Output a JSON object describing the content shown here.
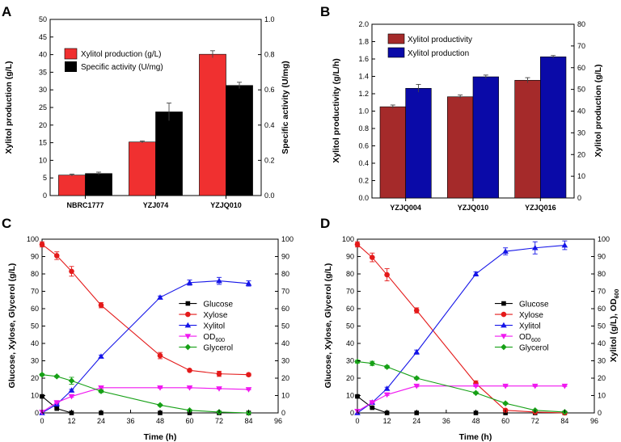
{
  "chart_data": [
    {
      "id": "A",
      "type": "bar",
      "panel_label": "A",
      "categories": [
        "NBRC1777",
        "YZJ074",
        "YZJQ010"
      ],
      "series": [
        {
          "name": "Xylitol production (g/L)",
          "axis": "left",
          "color": "#f03030",
          "values": [
            5.8,
            15.2,
            40.1
          ],
          "errors": [
            0.3,
            0.3,
            1.0
          ]
        },
        {
          "name": "Specific activity (U/mg)",
          "axis": "right",
          "color": "#000000",
          "values": [
            0.125,
            0.475,
            0.625
          ],
          "errors": [
            0.008,
            0.05,
            0.018
          ]
        }
      ],
      "ylabel": "Xylitol production (g/L)",
      "y2label": "Specific activity (U/mg)",
      "ylim": [
        0,
        50
      ],
      "y2lim": [
        0,
        1.0
      ],
      "yticks": [
        "0",
        "5",
        "10",
        "15",
        "20",
        "25",
        "30",
        "35",
        "40",
        "45",
        "50"
      ],
      "y2ticks": [
        "0.0",
        "0.2",
        "0.4",
        "0.6",
        "0.8",
        "1.0"
      ],
      "legend_position": "top-left"
    },
    {
      "id": "B",
      "type": "bar",
      "panel_label": "B",
      "categories": [
        "YZJQ004",
        "YZJQ010",
        "YZJQ016"
      ],
      "series": [
        {
          "name": "Xylitol productivity",
          "axis": "left",
          "color": "#a52a2a",
          "values": [
            1.05,
            1.165,
            1.355
          ],
          "errors": [
            0.02,
            0.02,
            0.03
          ]
        },
        {
          "name": "Xylitol production",
          "axis": "right",
          "color": "#0a0aa8",
          "values": [
            50.5,
            55.8,
            65.0
          ],
          "errors": [
            1.8,
            0.8,
            0.6
          ]
        }
      ],
      "ylabel": "Xylitol productivity (g/L/h)",
      "y2label": "Xylitol production (g/L)",
      "ylim": [
        0,
        2.0
      ],
      "y2lim": [
        0,
        80
      ],
      "yticks": [
        "0.0",
        "0.2",
        "0.4",
        "0.6",
        "0.8",
        "1.0",
        "1.2",
        "1.4",
        "1.6",
        "1.8",
        "2.0"
      ],
      "y2ticks": [
        "0",
        "10",
        "20",
        "30",
        "40",
        "50",
        "60",
        "70",
        "80"
      ],
      "legend_position": "top-left"
    },
    {
      "id": "C",
      "type": "line",
      "panel_label": "C",
      "xlabel": "Time (h)",
      "ylabel": "Glucose, Xylose, Glycerol (g/L)",
      "xlim": [
        0,
        96
      ],
      "ylim": [
        0,
        100
      ],
      "y2lim": [
        0,
        100
      ],
      "xticks": [
        "0",
        "12",
        "24",
        "36",
        "48",
        "60",
        "72",
        "84",
        "96"
      ],
      "yticks": [
        "0",
        "10",
        "20",
        "30",
        "40",
        "50",
        "60",
        "70",
        "80",
        "90",
        "100"
      ],
      "y2ticks": [
        "0",
        "10",
        "20",
        "30",
        "40",
        "50",
        "60",
        "70",
        "80",
        "90",
        "100"
      ],
      "legend_position": "center-right",
      "series": [
        {
          "name": "Glucose",
          "color": "#000000",
          "marker": "square",
          "x": [
            0,
            6,
            12,
            24,
            48,
            60,
            72,
            84
          ],
          "values": [
            9.5,
            2.5,
            0,
            0,
            0,
            0,
            0,
            0
          ],
          "errors": [
            0.3,
            0.3,
            0,
            0,
            0,
            0,
            0,
            0
          ]
        },
        {
          "name": "Xylose",
          "color": "#e41a1a",
          "marker": "circle",
          "x": [
            0,
            6,
            12,
            24,
            48,
            60,
            72,
            84
          ],
          "values": [
            97,
            90.5,
            81.5,
            62,
            33,
            24.5,
            22.5,
            22
          ],
          "errors": [
            1.5,
            2.2,
            2.8,
            1.5,
            1.8,
            0.5,
            1.5,
            0.8
          ]
        },
        {
          "name": "Xylitol",
          "color": "#1515e8",
          "marker": "triangle-up",
          "x": [
            0,
            6,
            12,
            24,
            48,
            60,
            72,
            84
          ],
          "values": [
            0,
            5,
            13,
            32.5,
            66.5,
            75,
            76,
            74.5
          ],
          "errors": [
            0,
            0.3,
            0.6,
            0.8,
            0.8,
            1.5,
            2,
            1.5
          ]
        },
        {
          "name": "OD600",
          "color": "#f019f0",
          "marker": "triangle-down",
          "x": [
            0,
            6,
            12,
            24,
            48,
            60,
            72,
            84
          ],
          "values": [
            0.5,
            6,
            9.5,
            14.5,
            14.5,
            14.5,
            14,
            13.5
          ],
          "errors": [
            0,
            0.3,
            0.5,
            0.5,
            0.4,
            0.3,
            0.3,
            0.3
          ]
        },
        {
          "name": "Glycerol",
          "color": "#16a016",
          "marker": "diamond",
          "x": [
            0,
            6,
            12,
            24,
            48,
            60,
            72,
            84
          ],
          "values": [
            22,
            21,
            18.5,
            12.5,
            4.5,
            1.5,
            0.5,
            0
          ],
          "errors": [
            0.6,
            0.5,
            2,
            0.8,
            0.5,
            0.3,
            0.2,
            0
          ]
        }
      ],
      "legend_labels": [
        {
          "name": "Glucose",
          "main": "Glucose",
          "sub": ""
        },
        {
          "name": "Xylose",
          "main": "Xylose",
          "sub": ""
        },
        {
          "name": "Xylitol",
          "main": "Xylitol",
          "sub": ""
        },
        {
          "name": "OD600",
          "main": "OD",
          "sub": "600"
        },
        {
          "name": "Glycerol",
          "main": "Glycerol",
          "sub": ""
        }
      ]
    },
    {
      "id": "D",
      "type": "line",
      "panel_label": "D",
      "xlabel": "Time (h)",
      "ylabel": "Glucose, Xylose, Glycerol (g/L)",
      "y2label_main": "Xylitol (g/L), OD",
      "y2label_sub": "600",
      "xlim": [
        0,
        96
      ],
      "ylim": [
        0,
        100
      ],
      "y2lim": [
        0,
        100
      ],
      "xticks": [
        "0",
        "12",
        "24",
        "36",
        "48",
        "60",
        "72",
        "84",
        "96"
      ],
      "yticks": [
        "0",
        "10",
        "20",
        "30",
        "40",
        "50",
        "60",
        "70",
        "80",
        "90",
        "100"
      ],
      "y2ticks": [
        "0",
        "10",
        "20",
        "30",
        "40",
        "50",
        "60",
        "70",
        "80",
        "90",
        "100"
      ],
      "legend_position": "center-right",
      "series": [
        {
          "name": "Glucose",
          "color": "#000000",
          "marker": "square",
          "x": [
            0,
            6,
            12,
            24,
            48,
            60,
            72,
            84
          ],
          "values": [
            9.5,
            3,
            0,
            0,
            0,
            0,
            0,
            0
          ],
          "errors": [
            0.3,
            0.3,
            0,
            0,
            0,
            0,
            0,
            0
          ]
        },
        {
          "name": "Xylose",
          "color": "#e41a1a",
          "marker": "circle",
          "x": [
            0,
            6,
            12,
            24,
            48,
            60,
            72,
            84
          ],
          "values": [
            97,
            89.5,
            79.5,
            59,
            17,
            1.5,
            0.5,
            0
          ],
          "errors": [
            1.5,
            2.5,
            3.5,
            1.5,
            1.5,
            0.3,
            0.2,
            0
          ]
        },
        {
          "name": "Xylitol",
          "color": "#1515e8",
          "marker": "triangle-up",
          "x": [
            0,
            6,
            12,
            24,
            48,
            60,
            72,
            84
          ],
          "values": [
            0,
            6,
            14,
            35,
            80,
            93,
            95,
            96.5
          ],
          "errors": [
            0,
            0.3,
            0.8,
            1.2,
            1.2,
            2,
            3.5,
            2.5
          ]
        },
        {
          "name": "OD600",
          "color": "#f019f0",
          "marker": "triangle-down",
          "x": [
            0,
            6,
            12,
            24,
            48,
            60,
            72,
            84
          ],
          "values": [
            1,
            6,
            10.5,
            15.5,
            15.5,
            15.5,
            15.5,
            15.5
          ],
          "errors": [
            0,
            0.3,
            0.5,
            0.5,
            0.4,
            0.3,
            0.3,
            0.3
          ]
        },
        {
          "name": "Glycerol",
          "color": "#16a016",
          "marker": "diamond",
          "x": [
            0,
            6,
            12,
            24,
            48,
            60,
            72,
            84
          ],
          "values": [
            29.5,
            28.5,
            26.5,
            20,
            11.5,
            5.5,
            1.5,
            0.5
          ],
          "errors": [
            0.8,
            1.2,
            0.8,
            0.6,
            0.6,
            0.5,
            0.3,
            0.2
          ]
        }
      ],
      "legend_labels": [
        {
          "name": "Glucose",
          "main": "Glucose",
          "sub": ""
        },
        {
          "name": "Xylose",
          "main": "Xylose",
          "sub": ""
        },
        {
          "name": "Xylitol",
          "main": "Xylitol",
          "sub": ""
        },
        {
          "name": "OD600",
          "main": "OD",
          "sub": "600"
        },
        {
          "name": "Glycerol",
          "main": "Glycerol",
          "sub": ""
        }
      ]
    }
  ]
}
